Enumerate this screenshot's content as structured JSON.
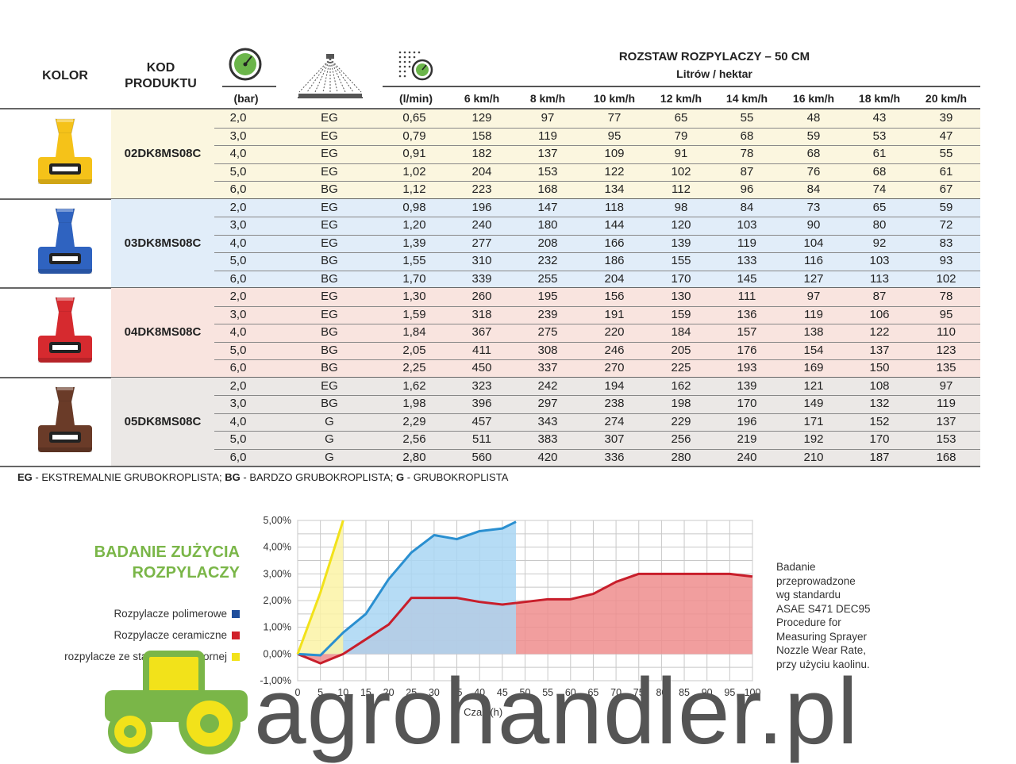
{
  "header": {
    "col_color": "KOLOR",
    "col_code_l1": "KOD",
    "col_code_l2": "PRODUKTU",
    "col_pressure": "(bar)",
    "col_flow": "(l/min)",
    "spacing_title": "ROZSTAW ROZPYLACZY – 50 CM",
    "spacing_sub": "Litrów / hektar",
    "speeds": [
      "6 km/h",
      "8 km/h",
      "10 km/h",
      "12 km/h",
      "14 km/h",
      "16 km/h",
      "18 km/h",
      "20 km/h"
    ]
  },
  "icons": {
    "pressure": "pressure-gauge-icon",
    "spray": "spray-fan-icon",
    "flow": "flow-meter-icon"
  },
  "groups": [
    {
      "code": "02DK8MS08C",
      "nozzle_color": "#f5c219",
      "band_color": "#fbf6df",
      "rows": [
        [
          "2,0",
          "EG",
          "0,65",
          "129",
          "97",
          "77",
          "65",
          "55",
          "48",
          "43",
          "39"
        ],
        [
          "3,0",
          "EG",
          "0,79",
          "158",
          "119",
          "95",
          "79",
          "68",
          "59",
          "53",
          "47"
        ],
        [
          "4,0",
          "EG",
          "0,91",
          "182",
          "137",
          "109",
          "91",
          "78",
          "68",
          "61",
          "55"
        ],
        [
          "5,0",
          "EG",
          "1,02",
          "204",
          "153",
          "122",
          "102",
          "87",
          "76",
          "68",
          "61"
        ],
        [
          "6,0",
          "BG",
          "1,12",
          "223",
          "168",
          "134",
          "112",
          "96",
          "84",
          "74",
          "67"
        ]
      ]
    },
    {
      "code": "03DK8MS08C",
      "nozzle_color": "#2f63c0",
      "band_color": "#e1edf9",
      "rows": [
        [
          "2,0",
          "EG",
          "0,98",
          "196",
          "147",
          "118",
          "98",
          "84",
          "73",
          "65",
          "59"
        ],
        [
          "3,0",
          "EG",
          "1,20",
          "240",
          "180",
          "144",
          "120",
          "103",
          "90",
          "80",
          "72"
        ],
        [
          "4,0",
          "EG",
          "1,39",
          "277",
          "208",
          "166",
          "139",
          "119",
          "104",
          "92",
          "83"
        ],
        [
          "5,0",
          "BG",
          "1,55",
          "310",
          "232",
          "186",
          "155",
          "133",
          "116",
          "103",
          "93"
        ],
        [
          "6,0",
          "BG",
          "1,70",
          "339",
          "255",
          "204",
          "170",
          "145",
          "127",
          "113",
          "102"
        ]
      ]
    },
    {
      "code": "04DK8MS08C",
      "nozzle_color": "#d62a2f",
      "band_color": "#f9e4df",
      "rows": [
        [
          "2,0",
          "EG",
          "1,30",
          "260",
          "195",
          "156",
          "130",
          "111",
          "97",
          "87",
          "78"
        ],
        [
          "3,0",
          "EG",
          "1,59",
          "318",
          "239",
          "191",
          "159",
          "136",
          "119",
          "106",
          "95"
        ],
        [
          "4,0",
          "BG",
          "1,84",
          "367",
          "275",
          "220",
          "184",
          "157",
          "138",
          "122",
          "110"
        ],
        [
          "5,0",
          "BG",
          "2,05",
          "411",
          "308",
          "246",
          "205",
          "176",
          "154",
          "137",
          "123"
        ],
        [
          "6,0",
          "BG",
          "2,25",
          "450",
          "337",
          "270",
          "225",
          "193",
          "169",
          "150",
          "135"
        ]
      ]
    },
    {
      "code": "05DK8MS08C",
      "nozzle_color": "#6a3b28",
      "band_color": "#ebe8e6",
      "rows": [
        [
          "2,0",
          "EG",
          "1,62",
          "323",
          "242",
          "194",
          "162",
          "139",
          "121",
          "108",
          "97"
        ],
        [
          "3,0",
          "BG",
          "1,98",
          "396",
          "297",
          "238",
          "198",
          "170",
          "149",
          "132",
          "119"
        ],
        [
          "4,0",
          "G",
          "2,29",
          "457",
          "343",
          "274",
          "229",
          "196",
          "171",
          "152",
          "137"
        ],
        [
          "5,0",
          "G",
          "2,56",
          "511",
          "383",
          "307",
          "256",
          "219",
          "192",
          "170",
          "153"
        ],
        [
          "6,0",
          "G",
          "2,80",
          "560",
          "420",
          "336",
          "280",
          "240",
          "210",
          "187",
          "168"
        ]
      ]
    }
  ],
  "abbrev": [
    {
      "code": "EG",
      "desc": " - EKSTREMALNIE GRUBOKROPLISTA; "
    },
    {
      "code": "BG",
      "desc": " - BARDZO GRUBOKROPLISTA; "
    },
    {
      "code": "G",
      "desc": " - GRUBOKROPLISTA"
    }
  ],
  "chart_title_l1": "BADANIE ZUŻYCIA",
  "chart_title_l2": "ROZPYLACZY",
  "note_lines": [
    "Badanie",
    "przeprowadzone",
    "wg standardu",
    "ASAE S471 DEC95",
    "Procedure for",
    "Measuring Sprayer",
    "Nozzle Wear Rate,",
    "przy użyciu kaolinu."
  ],
  "watermark": "agrohandler.pl",
  "chart_data": {
    "type": "area",
    "title": "",
    "xlabel": "Czas (h)",
    "ylabel": "",
    "x_ticks": [
      0,
      5,
      10,
      15,
      20,
      25,
      30,
      35,
      40,
      45,
      50,
      55,
      60,
      65,
      70,
      75,
      80,
      85,
      90,
      95,
      100
    ],
    "y_ticks": [
      "-1,00%",
      "0,00%",
      "1,00%",
      "2,00%",
      "3,00%",
      "4,00%",
      "5,00%"
    ],
    "xlim": [
      0,
      100
    ],
    "ylim": [
      -1,
      5
    ],
    "grid": true,
    "legend_position": "left",
    "series": [
      {
        "name": "Rozpylacze polimerowe",
        "color": "#1f4e9c",
        "line_color": "#2a8fd0",
        "fill": "#a9d6f3",
        "x": [
          0,
          5,
          10,
          15,
          20,
          25,
          30,
          35,
          40,
          45,
          48
        ],
        "y": [
          0,
          -0.05,
          0.8,
          1.5,
          2.8,
          3.8,
          4.45,
          4.3,
          4.6,
          4.7,
          4.95
        ]
      },
      {
        "name": "Rozpylacze ceramiczne",
        "color": "#d0202a",
        "line_color": "#c81e2b",
        "fill": "#ef8d8d",
        "x": [
          0,
          5,
          10,
          15,
          20,
          25,
          30,
          35,
          40,
          45,
          50,
          55,
          60,
          65,
          70,
          75,
          80,
          85,
          90,
          95,
          100
        ],
        "y": [
          0,
          -0.35,
          0,
          0.55,
          1.1,
          2.1,
          2.1,
          2.1,
          1.95,
          1.85,
          1.95,
          2.05,
          2.05,
          2.25,
          2.7,
          3.0,
          3.0,
          3.0,
          3.0,
          3.0,
          2.9
        ]
      },
      {
        "name": "rozpylacze ze stali kwasoodpornej",
        "color": "#f2e21a",
        "line_color": "#f2e21a",
        "fill": "#fbf3a6",
        "x": [
          0,
          5,
          10
        ],
        "y": [
          0,
          2.3,
          5.0
        ]
      }
    ]
  }
}
